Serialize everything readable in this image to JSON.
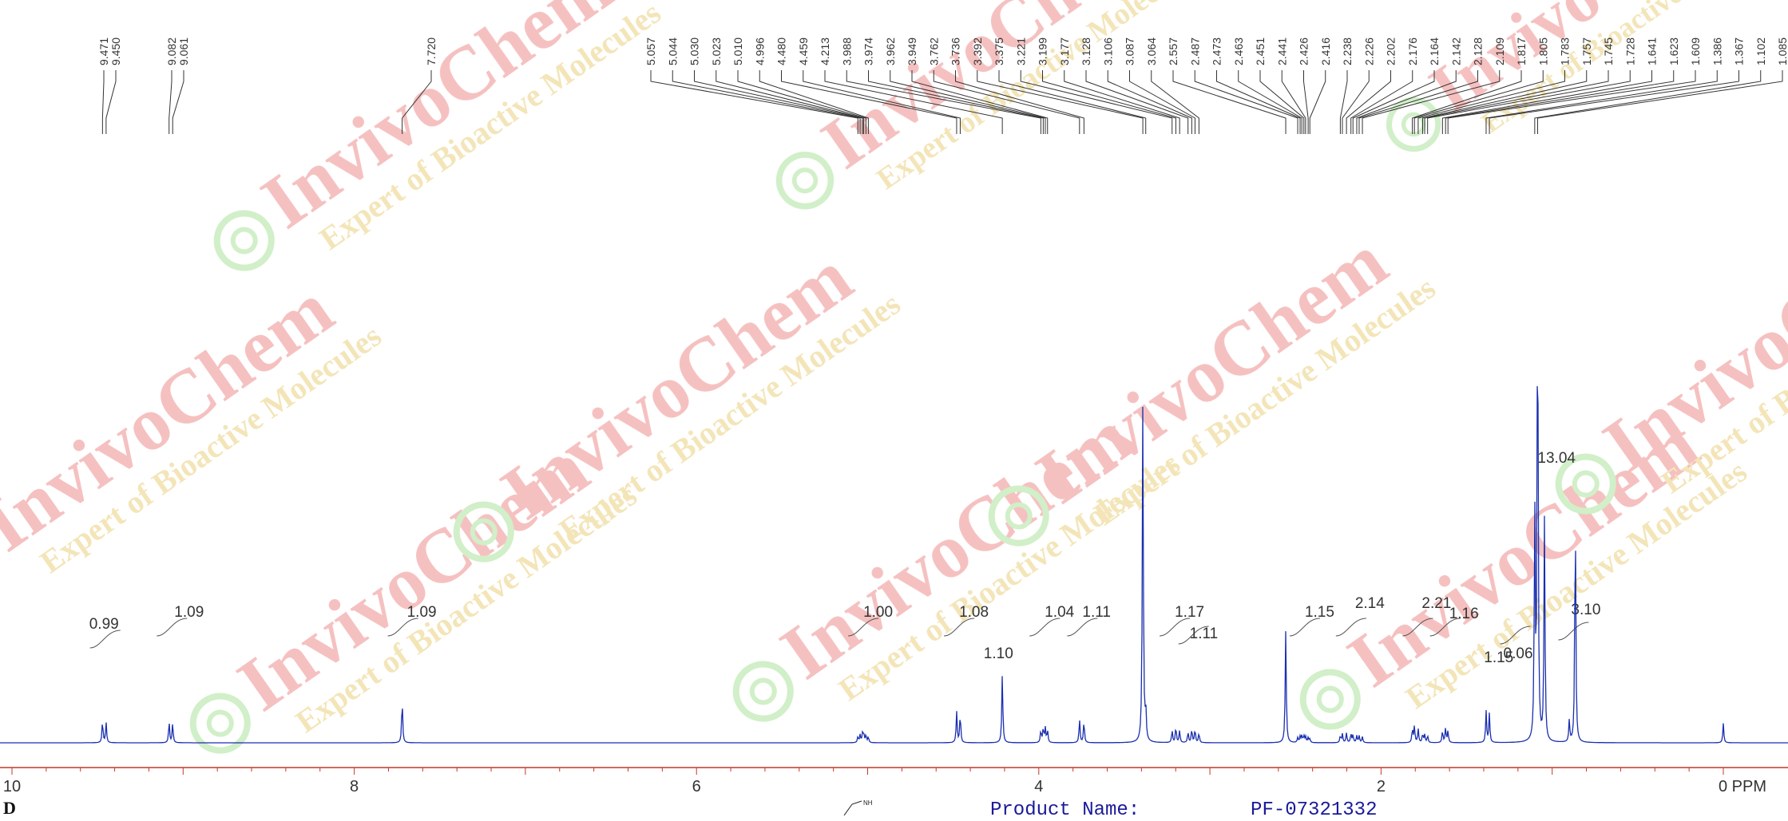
{
  "chart_data": {
    "type": "line",
    "xlabel": "PPM",
    "xlim": [
      10.2,
      -0.1
    ],
    "x_ticks": [
      10,
      8,
      6,
      4,
      2,
      0
    ],
    "x_tick_labels": [
      "10",
      "8",
      "6",
      "4",
      "2",
      "0 PPM"
    ],
    "peak_labels": [
      "9.471",
      "9.450",
      "9.082",
      "9.061",
      "7.720",
      "5.057",
      "5.044",
      "5.030",
      "5.023",
      "5.010",
      "4.996",
      "4.480",
      "4.459",
      "4.213",
      "3.988",
      "3.974",
      "3.962",
      "3.949",
      "3.762",
      "3.736",
      "3.392",
      "3.375",
      "3.221",
      "3.199",
      "3.177",
      "3.128",
      "3.106",
      "3.087",
      "3.064",
      "2.557",
      "2.487",
      "2.473",
      "2.463",
      "2.451",
      "2.441",
      "2.426",
      "2.416",
      "2.238",
      "2.226",
      "2.202",
      "2.176",
      "2.164",
      "2.142",
      "2.128",
      "2.109",
      "1.817",
      "1.805",
      "1.783",
      "1.757",
      "1.745",
      "1.728",
      "1.641",
      "1.623",
      "1.609",
      "1.386",
      "1.367",
      "1.102",
      "1.085"
    ],
    "integrals": [
      {
        "label": "0.99",
        "ppm": 9.46
      },
      {
        "label": "1.09",
        "ppm": 9.07
      },
      {
        "label": "1.09",
        "ppm": 7.72
      },
      {
        "label": "1.00",
        "ppm": 5.03
      },
      {
        "label": "1.08",
        "ppm": 4.47
      },
      {
        "label": "1.10",
        "ppm": 4.21
      },
      {
        "label": "1.04",
        "ppm": 3.97
      },
      {
        "label": "1.11",
        "ppm": 3.75
      },
      {
        "label": "1.17",
        "ppm": 3.21
      },
      {
        "label": "1.11",
        "ppm": 3.1
      },
      {
        "label": "1.15",
        "ppm": 2.45
      },
      {
        "label": "2.14",
        "ppm": 2.18
      },
      {
        "label": "2.21",
        "ppm": 1.79
      },
      {
        "label": "1.16",
        "ppm": 1.63
      },
      {
        "label": "1.15",
        "ppm": 1.38
      },
      {
        "label": "0.06",
        "ppm": 1.22
      },
      {
        "label": "13.04",
        "ppm": 1.02
      },
      {
        "label": "3.10",
        "ppm": 0.88
      }
    ],
    "peaks": [
      {
        "ppm": 9.471,
        "h": 0.045
      },
      {
        "ppm": 9.45,
        "h": 0.042
      },
      {
        "ppm": 9.082,
        "h": 0.043
      },
      {
        "ppm": 9.061,
        "h": 0.04
      },
      {
        "ppm": 7.72,
        "h": 0.09
      },
      {
        "ppm": 5.057,
        "h": 0.012
      },
      {
        "ppm": 5.044,
        "h": 0.016
      },
      {
        "ppm": 5.03,
        "h": 0.018
      },
      {
        "ppm": 5.023,
        "h": 0.018
      },
      {
        "ppm": 5.01,
        "h": 0.016
      },
      {
        "ppm": 4.996,
        "h": 0.012
      },
      {
        "ppm": 4.48,
        "h": 0.064
      },
      {
        "ppm": 4.459,
        "h": 0.06
      },
      {
        "ppm": 4.213,
        "h": 0.143
      },
      {
        "ppm": 3.988,
        "h": 0.025
      },
      {
        "ppm": 3.974,
        "h": 0.03
      },
      {
        "ppm": 3.962,
        "h": 0.03
      },
      {
        "ppm": 3.949,
        "h": 0.025
      },
      {
        "ppm": 3.762,
        "h": 0.048
      },
      {
        "ppm": 3.736,
        "h": 0.045
      },
      {
        "ppm": 3.392,
        "h": 0.7
      },
      {
        "ppm": 3.375,
        "h": 0.06
      },
      {
        "ppm": 3.221,
        "h": 0.025
      },
      {
        "ppm": 3.199,
        "h": 0.033
      },
      {
        "ppm": 3.177,
        "h": 0.025
      },
      {
        "ppm": 3.128,
        "h": 0.022
      },
      {
        "ppm": 3.106,
        "h": 0.028
      },
      {
        "ppm": 3.087,
        "h": 0.028
      },
      {
        "ppm": 3.064,
        "h": 0.02
      },
      {
        "ppm": 2.557,
        "h": 0.23
      },
      {
        "ppm": 2.487,
        "h": 0.01
      },
      {
        "ppm": 2.473,
        "h": 0.012
      },
      {
        "ppm": 2.463,
        "h": 0.014
      },
      {
        "ppm": 2.451,
        "h": 0.014
      },
      {
        "ppm": 2.441,
        "h": 0.012
      },
      {
        "ppm": 2.426,
        "h": 0.01
      },
      {
        "ppm": 2.416,
        "h": 0.008
      },
      {
        "ppm": 2.238,
        "h": 0.014
      },
      {
        "ppm": 2.226,
        "h": 0.018
      },
      {
        "ppm": 2.202,
        "h": 0.02
      },
      {
        "ppm": 2.176,
        "h": 0.018
      },
      {
        "ppm": 2.164,
        "h": 0.016
      },
      {
        "ppm": 2.142,
        "h": 0.014
      },
      {
        "ppm": 2.128,
        "h": 0.014
      },
      {
        "ppm": 2.109,
        "h": 0.012
      },
      {
        "ppm": 1.817,
        "h": 0.028
      },
      {
        "ppm": 1.805,
        "h": 0.034
      },
      {
        "ppm": 1.783,
        "h": 0.028
      },
      {
        "ppm": 1.757,
        "h": 0.018
      },
      {
        "ppm": 1.745,
        "h": 0.016
      },
      {
        "ppm": 1.728,
        "h": 0.014
      },
      {
        "ppm": 1.641,
        "h": 0.024
      },
      {
        "ppm": 1.623,
        "h": 0.03
      },
      {
        "ppm": 1.609,
        "h": 0.024
      },
      {
        "ppm": 1.386,
        "h": 0.065
      },
      {
        "ppm": 1.367,
        "h": 0.06
      },
      {
        "ppm": 1.102,
        "h": 0.47
      },
      {
        "ppm": 1.085,
        "h": 1.0
      },
      {
        "ppm": 1.045,
        "h": 0.46
      },
      {
        "ppm": 0.9,
        "h": 0.045
      },
      {
        "ppm": 0.865,
        "h": 0.49
      },
      {
        "ppm": 0.0,
        "h": 0.04
      }
    ],
    "colors": {
      "spectrum": "#1a2fb0",
      "axis": "#c0392b",
      "labels": "#333333",
      "integral": "#555555",
      "watermark_red": "#d9231d",
      "watermark_green": "#5cc43a"
    }
  },
  "watermark": {
    "brand": "InvivoChem",
    "tagline": "Expert of Bioactive Molecules"
  },
  "product": {
    "label": "Product Name:",
    "value": "PF-07321332"
  },
  "corner_letter": "D"
}
